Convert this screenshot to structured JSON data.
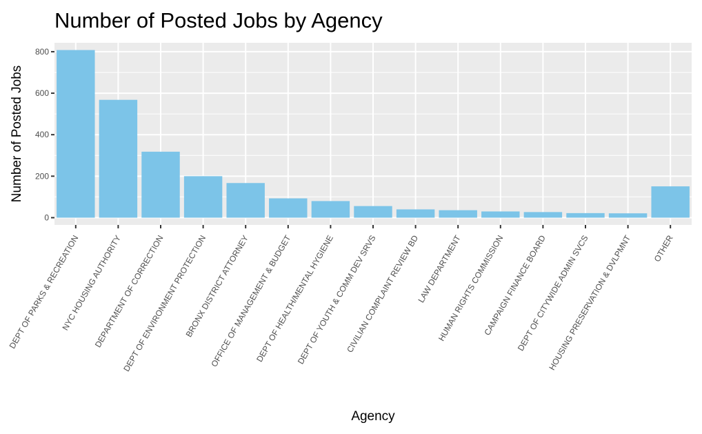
{
  "chart_data": {
    "type": "bar",
    "title": "Number of Posted Jobs by Agency",
    "xlabel": "Agency",
    "ylabel": "Number of Posted Jobs",
    "ylim": [
      -35,
      843
    ],
    "yticks": [
      0,
      200,
      400,
      600,
      800
    ],
    "grid": true,
    "legend": "none",
    "bar_color": "#7CC4E8",
    "panel_color": "#EBEBEB",
    "categories": [
      "DEPT OF PARKS & RECREATION",
      "NYC HOUSING AUTHORITY",
      "DEPARTMENT OF CORRECTION",
      "DEPT OF ENVIRONMENT PROTECTION",
      "BRONX DISTRICT ATTORNEY",
      "OFFICE OF MANAGEMENT & BUDGET",
      "DEPT OF HEALTH/MENTAL HYGIENE",
      "DEPT OF YOUTH & COMM DEV SRVS",
      "CIVILIAN COMPLAINT REVIEW BD",
      "LAW DEPARTMENT",
      "HUMAN RIGHTS COMMISSION",
      "CAMPAIGN FINANCE BOARD",
      "DEPT OF CITYWIDE ADMIN SVCS",
      "HOUSING PRESERVATION & DVLPMNT",
      "OTHER"
    ],
    "values": [
      808,
      568,
      318,
      200,
      167,
      93,
      80,
      56,
      40,
      36,
      30,
      27,
      22,
      21,
      151
    ]
  }
}
